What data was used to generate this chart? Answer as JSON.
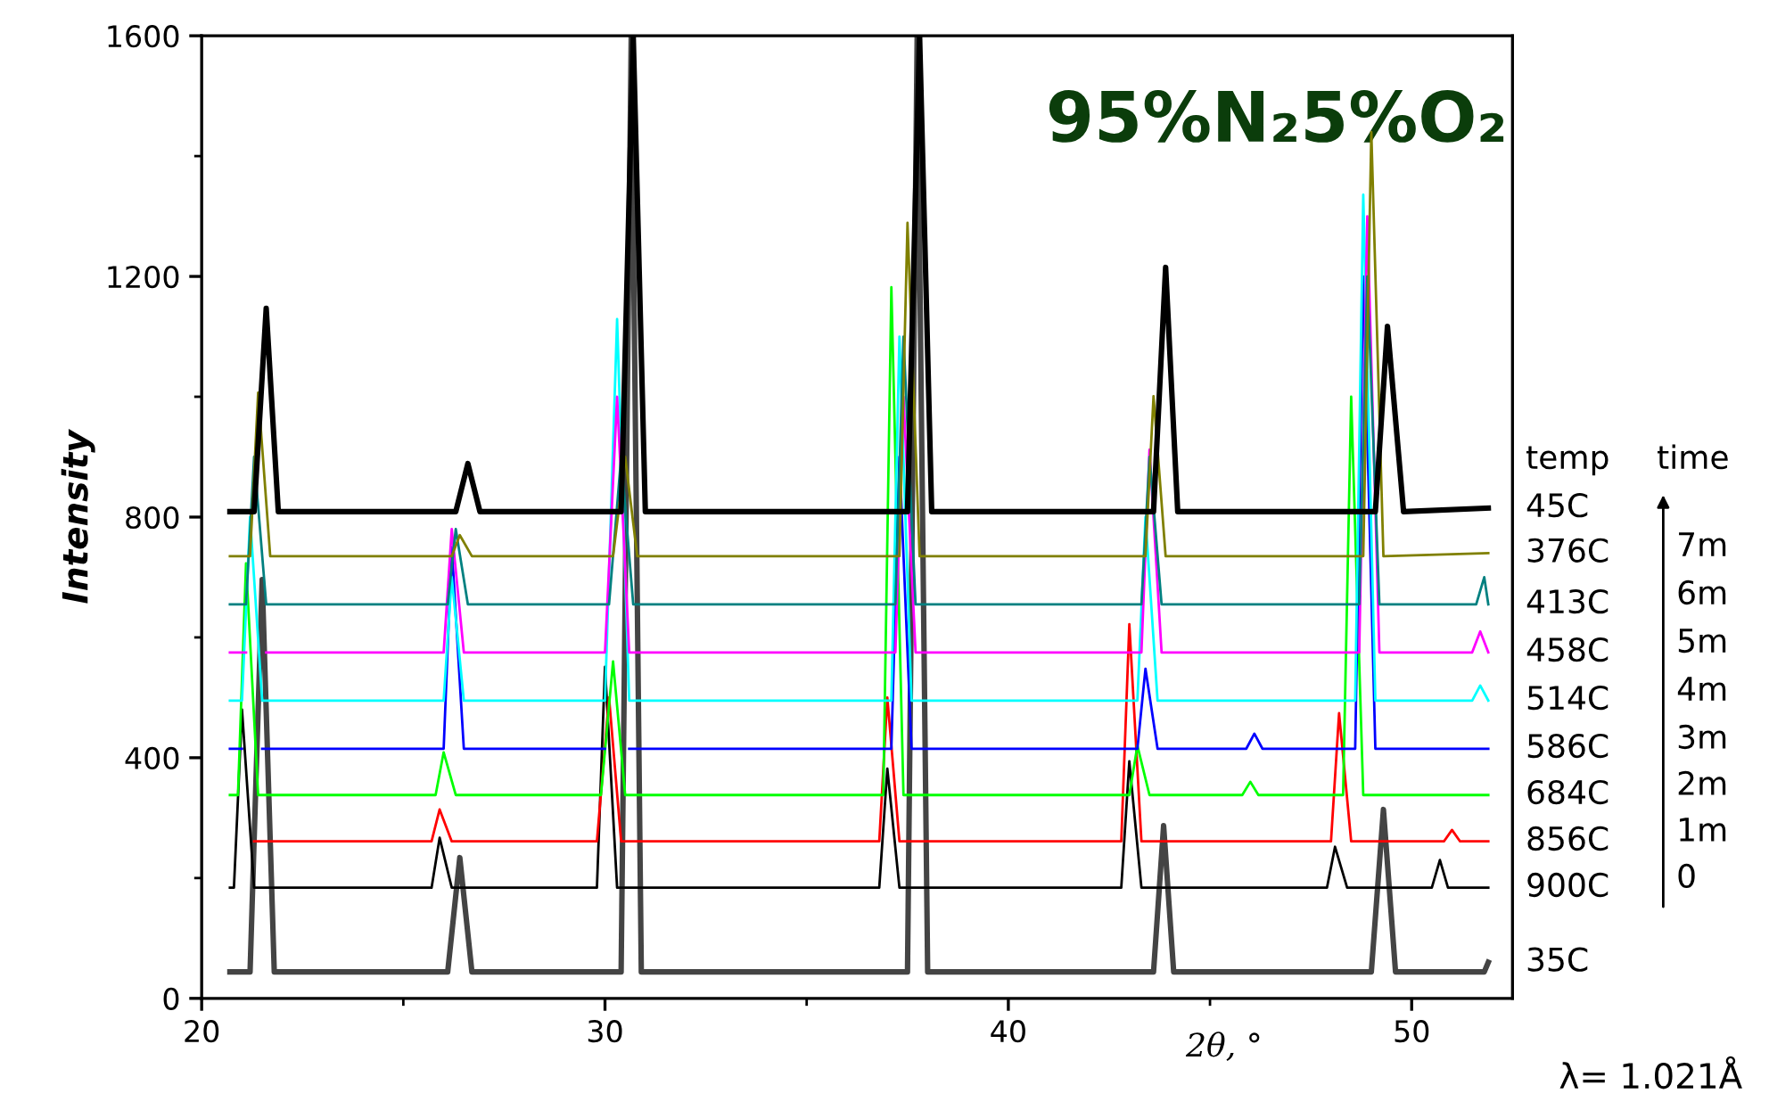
{
  "chart_data": {
    "type": "line",
    "title": "95%N₂5%O₂",
    "xlabel": "2θ, °",
    "ylabel": "Intensity",
    "xlim": [
      20,
      52.5
    ],
    "ylim": [
      0,
      1600
    ],
    "xticks": [
      20,
      30,
      40,
      {
        "value": 50,
        "label": "50"
      }
    ],
    "yticks": [
      0,
      400,
      800,
      1200,
      1600
    ],
    "grid": false,
    "legend": "right",
    "marker": "none",
    "line_style": "solid",
    "annotations": [
      "temp",
      "time",
      "7m",
      "6m",
      "5m",
      "4m",
      "3m",
      "2m",
      "1m",
      "0",
      "λ= 1.021Å"
    ],
    "series": [
      {
        "name": "45C",
        "color": "#000000",
        "x": [
          20.7,
          21.3,
          21.6,
          21.9,
          26.3,
          26.6,
          26.9,
          30.4,
          30.7,
          31.0,
          37.5,
          37.8,
          38.1,
          43.6,
          43.9,
          44.2,
          49.1,
          49.4,
          49.8,
          51.9
        ],
        "values": [
          809,
          809,
          1147,
          809,
          809,
          889,
          809,
          809,
          1600,
          809,
          809,
          1600,
          809,
          809,
          1215,
          809,
          809,
          1117,
          809,
          815
        ]
      },
      {
        "name": "376C",
        "color": "#808000",
        "x": [
          20.7,
          21.2,
          21.4,
          21.7,
          26.2,
          26.4,
          26.7,
          30.2,
          30.5,
          30.8,
          37.3,
          37.5,
          37.8,
          43.4,
          43.6,
          43.9,
          48.8,
          49.0,
          49.3,
          51.9
        ],
        "values": [
          735,
          735,
          1007,
          735,
          735,
          770,
          735,
          735,
          900,
          735,
          735,
          1289,
          735,
          735,
          1001,
          735,
          735,
          1440,
          735,
          740
        ]
      },
      {
        "name": "413C",
        "color": "#008080",
        "x": [
          20.7,
          21.1,
          21.3,
          21.6,
          26.1,
          26.3,
          26.6,
          30.1,
          30.4,
          30.7,
          37.2,
          37.4,
          37.7,
          43.3,
          43.5,
          43.8,
          48.7,
          48.9,
          49.2,
          51.6,
          51.8,
          51.9
        ],
        "values": [
          655,
          655,
          900,
          655,
          655,
          780,
          655,
          655,
          900,
          655,
          655,
          1100,
          655,
          655,
          900,
          655,
          655,
          1200,
          655,
          655,
          700,
          655
        ]
      },
      {
        "name": "458C",
        "color": "#ff00ff",
        "x": [
          20.7,
          21.1,
          21.3,
          21.6,
          26.0,
          26.2,
          26.5,
          30.0,
          30.3,
          30.6,
          37.2,
          37.4,
          37.7,
          43.3,
          43.5,
          43.8,
          48.7,
          48.9,
          49.2,
          51.5,
          51.7,
          51.9
        ],
        "values": [
          575,
          575,
          null,
          575,
          575,
          780,
          575,
          575,
          1000,
          575,
          575,
          1000,
          575,
          575,
          912,
          575,
          575,
          1300,
          575,
          575,
          610,
          575
        ]
      },
      {
        "name": "514C",
        "color": "#00ffff",
        "x": [
          20.7,
          21.0,
          21.2,
          21.5,
          26.0,
          26.2,
          26.5,
          30.0,
          30.3,
          30.6,
          37.1,
          37.3,
          37.6,
          43.2,
          43.4,
          43.7,
          48.6,
          48.8,
          49.1,
          51.5,
          51.7,
          51.9
        ],
        "values": [
          495,
          495,
          800,
          495,
          495,
          700,
          495,
          495,
          1129,
          495,
          495,
          1100,
          495,
          495,
          800,
          495,
          495,
          1336,
          495,
          495,
          520,
          495
        ]
      },
      {
        "name": "586C",
        "color": "#0000ff",
        "x": [
          20.7,
          21.0,
          21.2,
          21.5,
          26.0,
          26.2,
          26.5,
          30.0,
          30.3,
          30.6,
          37.1,
          37.3,
          37.6,
          43.2,
          43.4,
          43.7,
          45.9,
          46.1,
          46.3,
          48.6,
          48.8,
          49.1,
          51.9
        ],
        "values": [
          415,
          415,
          null,
          415,
          415,
          750,
          415,
          415,
          null,
          415,
          415,
          900,
          415,
          415,
          548,
          415,
          415,
          440,
          415,
          415,
          1200,
          415,
          415
        ]
      },
      {
        "name": "684C",
        "color": "#00ff00",
        "x": [
          20.7,
          20.9,
          21.1,
          21.4,
          25.8,
          26.0,
          26.3,
          29.9,
          30.2,
          30.5,
          36.9,
          37.1,
          37.4,
          43.0,
          43.2,
          43.5,
          45.8,
          46.0,
          46.2,
          48.3,
          48.5,
          48.8,
          51.9
        ],
        "values": [
          338,
          338,
          723,
          338,
          338,
          409,
          338,
          338,
          560,
          338,
          338,
          1182,
          338,
          338,
          420,
          338,
          338,
          360,
          338,
          338,
          1000,
          338,
          338
        ]
      },
      {
        "name": "856C",
        "color": "#ff0000",
        "x": [
          21.3,
          25.7,
          25.9,
          26.2,
          29.8,
          30.1,
          30.4,
          36.8,
          37.0,
          37.3,
          42.8,
          43.0,
          43.3,
          48.0,
          48.2,
          48.5,
          50.8,
          51.0,
          51.2,
          51.9
        ],
        "values": [
          261,
          261,
          314,
          261,
          261,
          500,
          261,
          261,
          500,
          261,
          261,
          622,
          261,
          261,
          474,
          261,
          261,
          280,
          261,
          261
        ]
      },
      {
        "name": "900C",
        "color": "#000000",
        "x": [
          20.7,
          20.8,
          21.0,
          21.3,
          25.7,
          25.9,
          26.2,
          29.8,
          30.0,
          30.3,
          36.8,
          37.0,
          37.3,
          42.8,
          43.0,
          43.3,
          47.9,
          48.1,
          48.4,
          50.5,
          50.7,
          50.9,
          51.9
        ],
        "values": [
          184,
          184,
          480,
          184,
          184,
          267,
          184,
          184,
          551,
          184,
          184,
          382,
          184,
          184,
          394,
          184,
          184,
          252,
          184,
          184,
          230,
          184,
          184
        ]
      },
      {
        "name": "35C",
        "color": "#444444",
        "x": [
          20.7,
          21.2,
          21.5,
          21.8,
          26.1,
          26.4,
          26.7,
          30.4,
          30.65,
          30.9,
          37.5,
          37.74,
          38.0,
          43.6,
          43.85,
          44.1,
          49.0,
          49.3,
          49.6,
          51.8,
          51.9
        ],
        "values": [
          44,
          44,
          696,
          44,
          44,
          234,
          44,
          44,
          1600,
          44,
          44,
          1600,
          44,
          44,
          287,
          44,
          44,
          314,
          44,
          44,
          60
        ]
      }
    ]
  }
}
